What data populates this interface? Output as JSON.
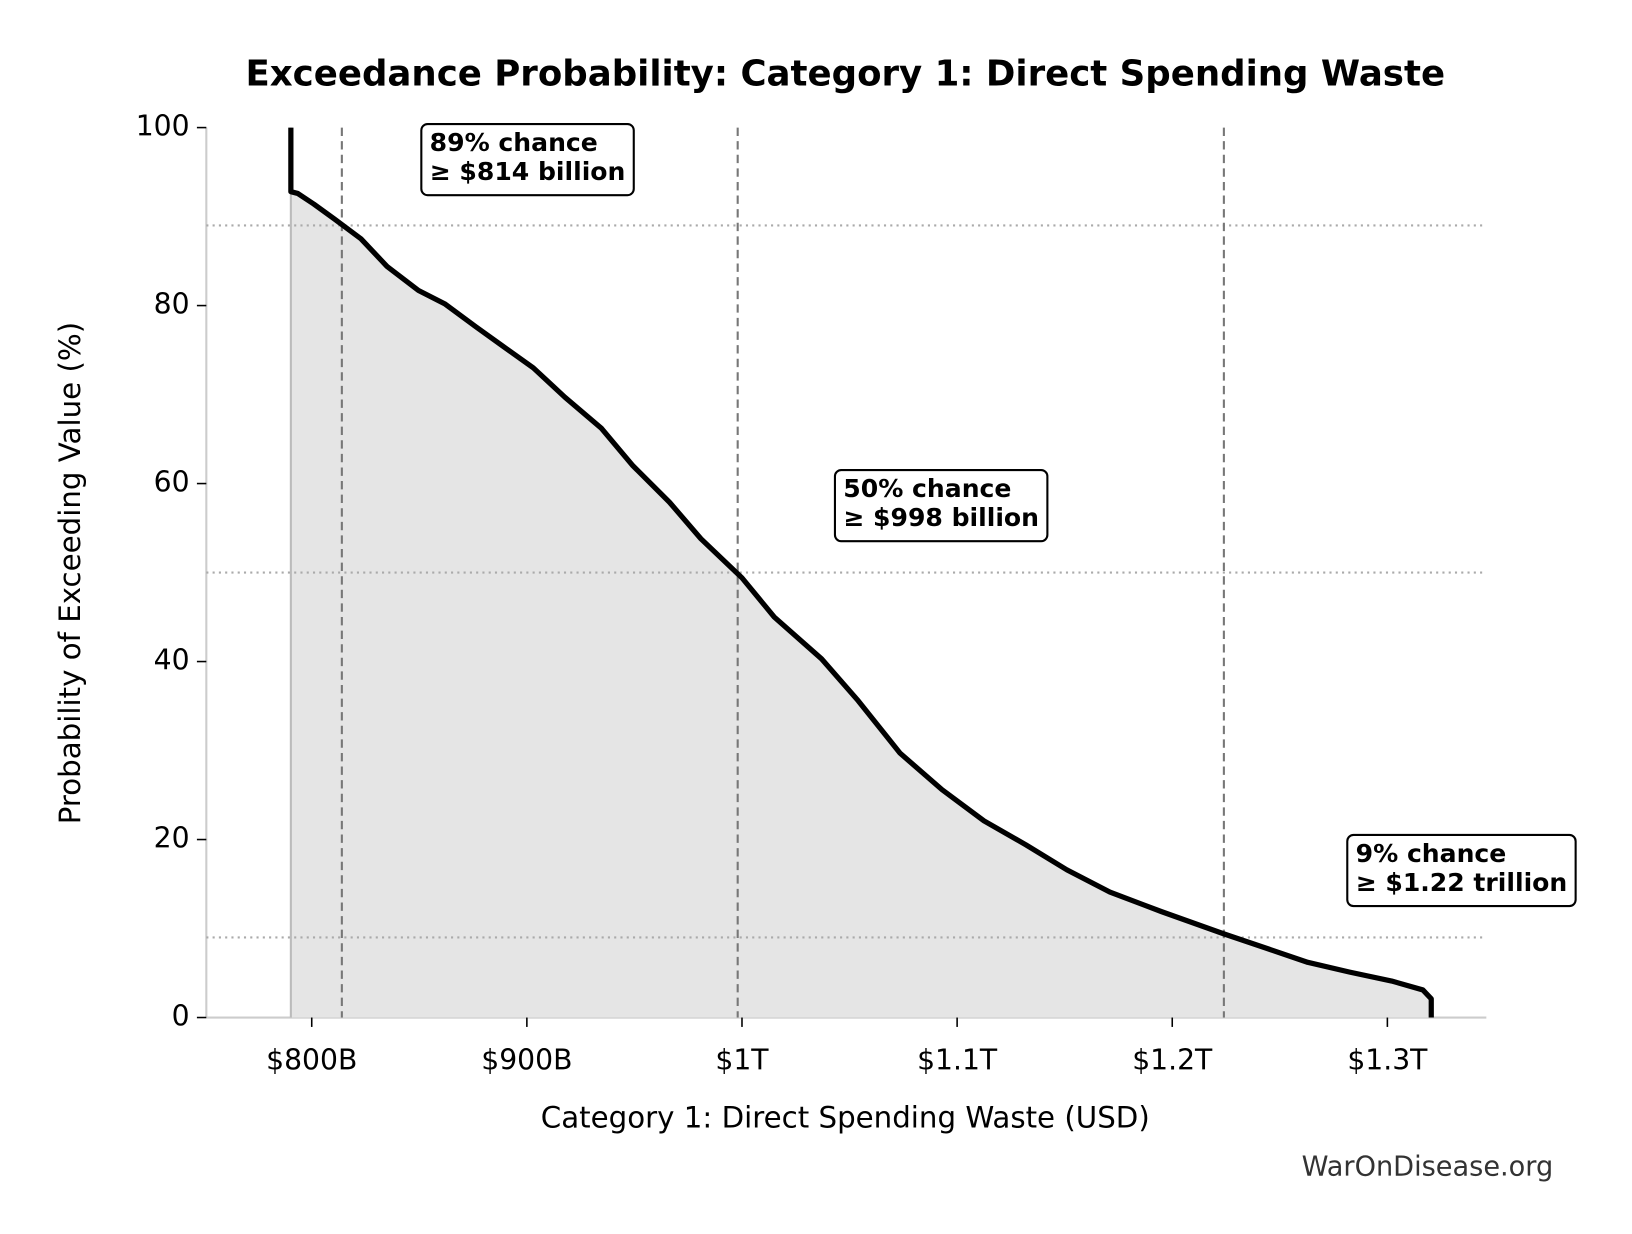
{
  "chart_data": {
    "type": "line",
    "title": "Exceedance Probability: Category 1: Direct Spending Waste",
    "x_label": "Category 1: Direct Spending Waste (USD)",
    "y_label": "Probability of Exceeding Value (%)",
    "source": "WarOnDisease.org",
    "xlim": [
      751000000000,
      1346000000000
    ],
    "ylim": [
      0,
      100
    ],
    "xticks": [
      {
        "value": 800000000000,
        "label": "$800B"
      },
      {
        "value": 900000000000,
        "label": "$900B"
      },
      {
        "value": 1000000000000,
        "label": "$1T"
      },
      {
        "value": 1100000000000,
        "label": "$1.1T"
      },
      {
        "value": 1200000000000,
        "label": "$1.2T"
      },
      {
        "value": 1300000000000,
        "label": "$1.3T"
      }
    ],
    "yticks": [
      0,
      20,
      40,
      60,
      80,
      100
    ],
    "series": [
      {
        "name": "Exceedance probability",
        "color": "#000000",
        "x": [
          790300000000,
          790300000000,
          793500000000,
          801000000000,
          810700000000,
          822900000000,
          835000000000,
          849600000000,
          861800000000,
          876400000000,
          888500000000,
          903000000000,
          917700000000,
          934700000000,
          949300000000,
          966300000000,
          980900000000,
          1000000000000,
          1015000000000,
          1037000000000,
          1054000000000,
          1073500000000,
          1093000000000,
          1112500000000,
          1132000000000,
          1151000000000,
          1171000000000,
          1195000000000,
          1224000000000,
          1243600000000,
          1263000000000,
          1282500000000,
          1302000000000,
          1316500000000,
          1320400000000,
          1320400000000
        ],
        "values": [
          100,
          92.8,
          92.6,
          91.4,
          89.7,
          87.5,
          84.4,
          81.7,
          80.2,
          77.6,
          75.5,
          73,
          69.7,
          66.2,
          62,
          57.9,
          53.8,
          49.4,
          45,
          40.3,
          35.6,
          29.7,
          25.6,
          22.1,
          19.4,
          16.6,
          14.1,
          11.9,
          9.4,
          7.8,
          6.2,
          5.1,
          4.1,
          3.1,
          2.1,
          0
        ]
      }
    ],
    "fill_color": "#e5e5e5",
    "reference_lines": [
      {
        "x": 814000000000,
        "y": 89,
        "label": [
          "89% chance",
          "≥ $814 billion"
        ]
      },
      {
        "x": 998000000000,
        "y": 50,
        "label": [
          "50% chance",
          "≥ $998 billion"
        ]
      },
      {
        "x": 1224000000000,
        "y": 9,
        "label": [
          "9% chance",
          "≥ $1.22 trillion"
        ]
      }
    ]
  }
}
